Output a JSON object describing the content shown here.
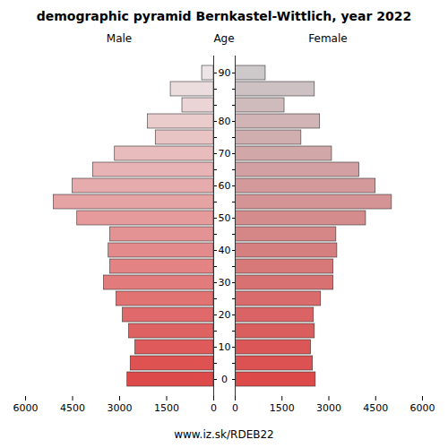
{
  "chart_data": {
    "type": "bar",
    "orientation": "horizontal",
    "title": "demographic pyramid Bernkastel-Wittlich, year 2022",
    "ylabel": "Age",
    "caption": "www.iz.sk/RDEB22",
    "categories": [
      "0",
      null,
      "10",
      null,
      "20",
      null,
      "30",
      null,
      "40",
      null,
      "50",
      null,
      "60",
      null,
      "70",
      null,
      "80",
      null,
      null,
      "90"
    ],
    "series": [
      {
        "name": "Male",
        "values": [
          2750,
          2650,
          2500,
          2700,
          2900,
          3100,
          3500,
          3300,
          3350,
          3300,
          4350,
          5100,
          4500,
          3850,
          3150,
          1850,
          2100,
          1000,
          1370,
          370
        ],
        "colors": [
          "#dd4a4a",
          "#de5252",
          "#df5a5a",
          "#df6263",
          "#e06a6b",
          "#e17373",
          "#e27b7b",
          "#e38383",
          "#e38b8c",
          "#e49394",
          "#e59b9c",
          "#e6a3a4",
          "#e6abad",
          "#e7b3b5",
          "#e8bcbd",
          "#e9c4c5",
          "#eacccd",
          "#ead4d6",
          "#ebdcde",
          "#ece4e6"
        ]
      },
      {
        "name": "Female",
        "values": [
          2580,
          2490,
          2430,
          2550,
          2520,
          2750,
          3150,
          3150,
          3270,
          3240,
          4190,
          5020,
          4500,
          3980,
          3100,
          2120,
          2720,
          1580,
          2550,
          975
        ],
        "colors": [
          "#dd4a4a",
          "#dc5151",
          "#db5757",
          "#da5e5e",
          "#da6465",
          "#d96b6c",
          "#d87272",
          "#d77879",
          "#d67f80",
          "#d58687",
          "#d58c8d",
          "#d49394",
          "#d3999b",
          "#d2a0a2",
          "#d1a7a8",
          "#d0adaf",
          "#d0b4b6",
          "#cfbbbc",
          "#cec1c3",
          "#cdc8ca"
        ]
      }
    ],
    "xlim": [
      0,
      6000
    ],
    "xticks": [
      0,
      1500,
      3000,
      4500,
      6000
    ]
  }
}
